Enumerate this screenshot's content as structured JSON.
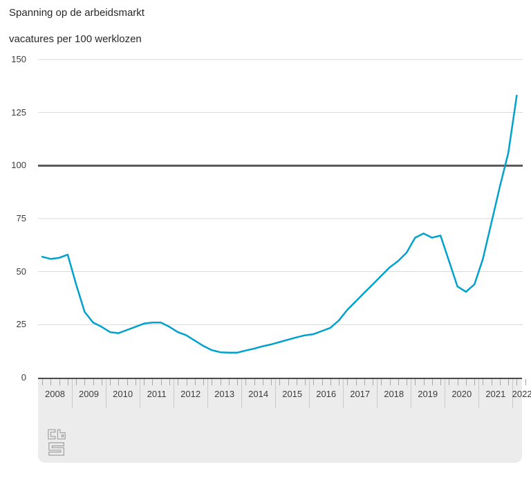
{
  "header": {
    "title": "Spanning op de arbeidsmarkt",
    "subtitle": "vacatures per 100 werklozen"
  },
  "chart_data": {
    "type": "line",
    "title": "Spanning op de arbeidsmarkt",
    "ylabel": "vacatures per 100 werklozen",
    "frequency": "quarterly",
    "x_start": "2008 Q1",
    "x_end": "2022 Q1",
    "year_tick_labels": [
      "2008",
      "2009",
      "2010",
      "2011",
      "2012",
      "2013",
      "2014",
      "2015",
      "2016",
      "2017",
      "2018",
      "2019",
      "2020",
      "2021",
      "2022"
    ],
    "y_ticks": [
      0,
      25,
      50,
      75,
      100,
      125,
      150
    ],
    "ylim": [
      0,
      150
    ],
    "grid": true,
    "reference_line": 100,
    "reference_line_color": "#58595b",
    "gridline_color": "#dadada",
    "series": [
      {
        "name": "vacatures per 100 werklozen",
        "color": "#00a1cd",
        "values": [
          57,
          56,
          56.5,
          58,
          44,
          31,
          26,
          24,
          21.5,
          21,
          22.5,
          24,
          25.5,
          26,
          26,
          24,
          21.5,
          20,
          17.5,
          15,
          13,
          12,
          11.8,
          11.8,
          12.8,
          13.7,
          14.8,
          15.7,
          16.8,
          17.9,
          19,
          20,
          20.5,
          22,
          23.5,
          27,
          32,
          36,
          40,
          44,
          48,
          52,
          55,
          59,
          66,
          68,
          66,
          67,
          55,
          43,
          40.5,
          44,
          56,
          73,
          90,
          106,
          133
        ]
      }
    ],
    "legend": null
  },
  "footer": {
    "logo": "cbs-logo"
  }
}
